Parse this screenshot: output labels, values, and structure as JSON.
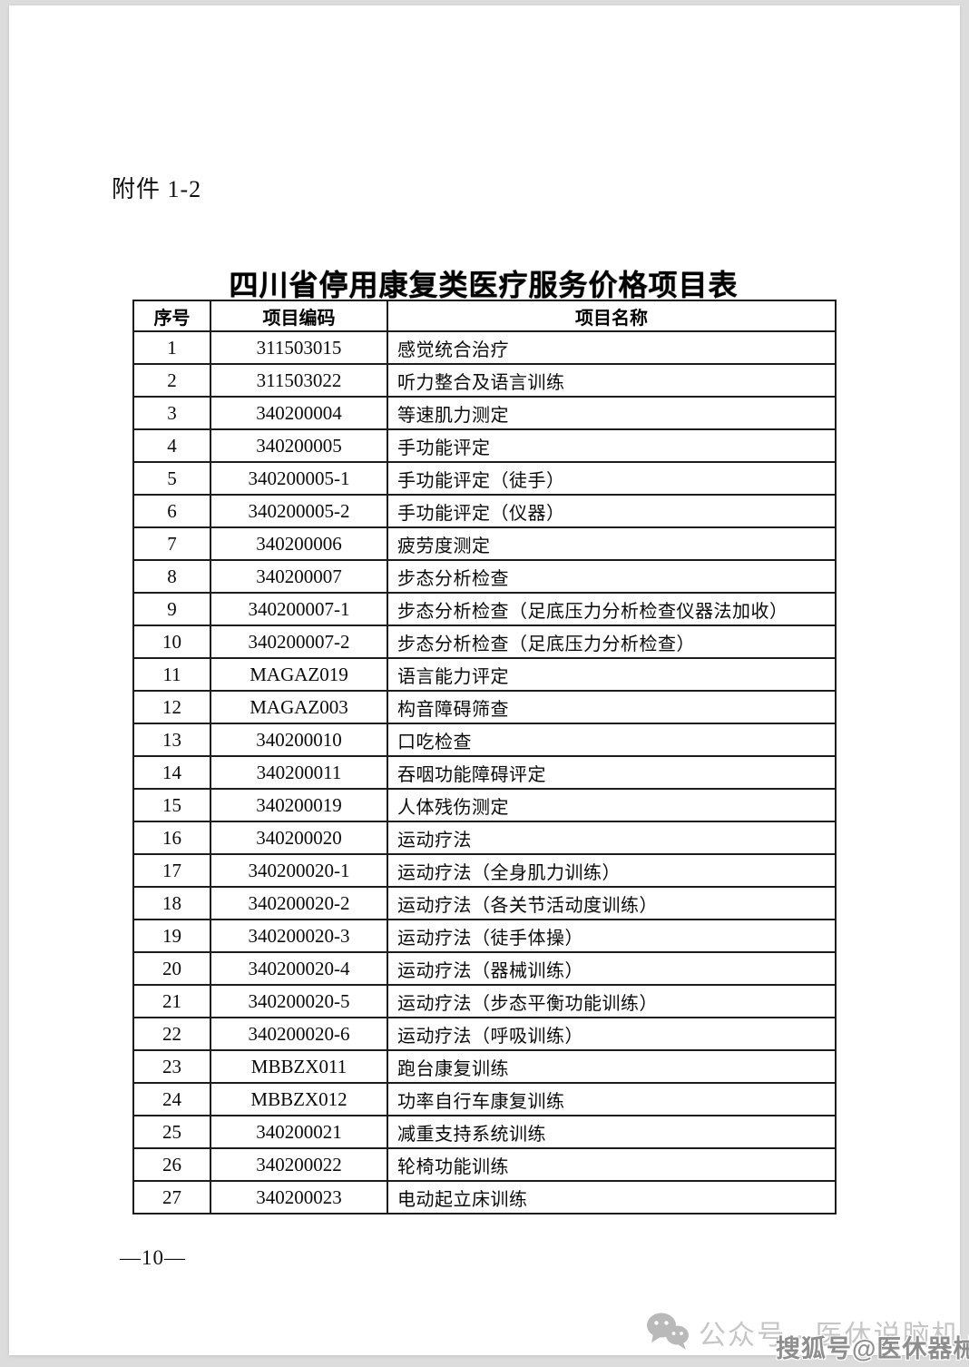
{
  "document": {
    "attachment_label": "附件 1-2",
    "title": "四川省停用康复类医疗服务价格项目表",
    "page_number": "—10—"
  },
  "table": {
    "headers": [
      "序号",
      "项目编码",
      "项目名称"
    ],
    "rows": [
      [
        "1",
        "311503015",
        "感觉统合治疗"
      ],
      [
        "2",
        "311503022",
        "听力整合及语言训练"
      ],
      [
        "3",
        "340200004",
        "等速肌力测定"
      ],
      [
        "4",
        "340200005",
        "手功能评定"
      ],
      [
        "5",
        "340200005-1",
        "手功能评定（徒手）"
      ],
      [
        "6",
        "340200005-2",
        "手功能评定（仪器）"
      ],
      [
        "7",
        "340200006",
        "疲劳度测定"
      ],
      [
        "8",
        "340200007",
        "步态分析检查"
      ],
      [
        "9",
        "340200007-1",
        "步态分析检查（足底压力分析检查仪器法加收）"
      ],
      [
        "10",
        "340200007-2",
        "步态分析检查（足底压力分析检查）"
      ],
      [
        "11",
        "MAGAZ019",
        "语言能力评定"
      ],
      [
        "12",
        "MAGAZ003",
        "构音障碍筛查"
      ],
      [
        "13",
        "340200010",
        "口吃检查"
      ],
      [
        "14",
        "340200011",
        "吞咽功能障碍评定"
      ],
      [
        "15",
        "340200019",
        "人体残伤测定"
      ],
      [
        "16",
        "340200020",
        "运动疗法"
      ],
      [
        "17",
        "340200020-1",
        "运动疗法（全身肌力训练）"
      ],
      [
        "18",
        "340200020-2",
        "运动疗法（各关节活动度训练）"
      ],
      [
        "19",
        "340200020-3",
        "运动疗法（徒手体操）"
      ],
      [
        "20",
        "340200020-4",
        "运动疗法（器械训练）"
      ],
      [
        "21",
        "340200020-5",
        "运动疗法（步态平衡功能训练）"
      ],
      [
        "22",
        "340200020-6",
        "运动疗法（呼吸训练）"
      ],
      [
        "23",
        "MBBZX011",
        "跑台康复训练"
      ],
      [
        "24",
        "MBBZX012",
        "功率自行车康复训练"
      ],
      [
        "25",
        "340200021",
        "减重支持系统训练"
      ],
      [
        "26",
        "340200022",
        "轮椅功能训练"
      ],
      [
        "27",
        "340200023",
        "电动起立床训练"
      ]
    ]
  },
  "watermark": {
    "wechat_icon": "wechat-icon",
    "wechat_text": "公众号 · 医休说脑机",
    "sohu_text": "搜狐号@医休器械"
  },
  "colors": {
    "page_background": "#ffffff",
    "outer_background": "#dcdcdc",
    "table_border": "#1c1c1c",
    "text": "#111111",
    "watermark_light": "#c6c6c6",
    "watermark_dark": "#8e8e8e"
  }
}
